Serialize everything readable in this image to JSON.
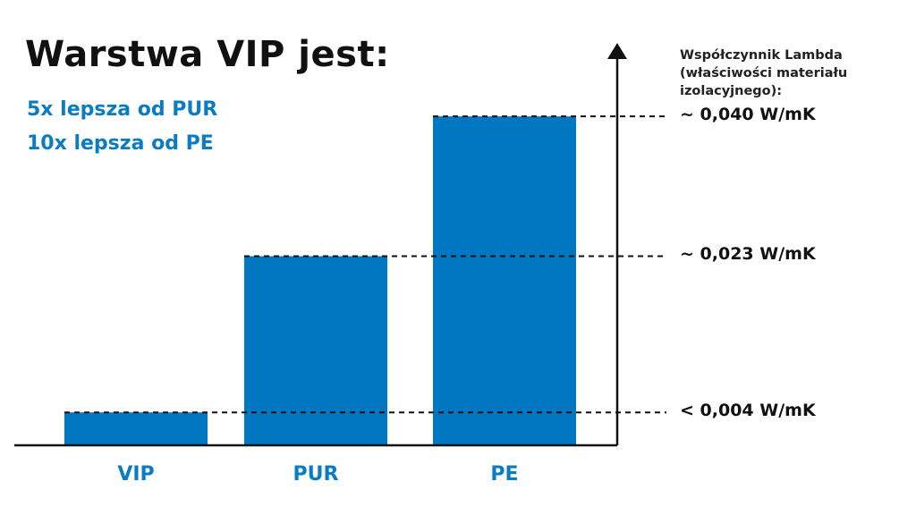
{
  "colors": {
    "bar": "#0077c0",
    "accent_text": "#0a7cc2",
    "axis": "#111111"
  },
  "header": {
    "title": "Warstwa VIP jest:",
    "subtitle_1": "5x lepsza od PUR",
    "subtitle_2": "10x lepsza od PE"
  },
  "axis_title": {
    "line_1": "Współczynnik Lambda",
    "line_2": "(właściwości materiału",
    "line_3": "izolacyjnego):"
  },
  "chart_data": {
    "type": "bar",
    "categories": [
      "VIP",
      "PUR",
      "PE"
    ],
    "values": [
      0.004,
      0.023,
      0.04
    ],
    "ylim": [
      0,
      0.0485
    ],
    "ylabel": "Współczynnik Lambda (właściwości materiału izolacyjnego):",
    "reference_labels": [
      "< 0,004 W/mK",
      "~ 0,023 W/mK",
      "~ 0,040 W/mK"
    ],
    "grid": false,
    "legend": "none"
  }
}
